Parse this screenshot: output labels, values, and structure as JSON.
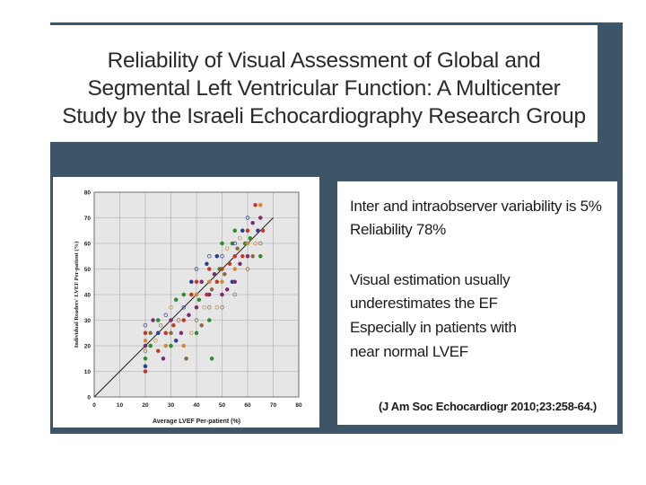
{
  "title": {
    "lines": [
      "Reliability of Visual Assessment of Global and",
      "Segmental Left Ventricular Function: A Multicenter",
      "Study by the Israeli Echocardiography Research Group"
    ]
  },
  "notes": {
    "lines": [
      "Inter and intraobserver variability is 5%",
      "Reliability 78%",
      "Visual estimation usually",
      "underestimates the EF",
      "Especially in patients with",
      "near normal LVEF"
    ],
    "citation": "(J Am Soc Echocardiogr 2010;23:258-64.)"
  },
  "colors": {
    "panel": "#3d5566",
    "series": [
      "#c0392b",
      "#2a3f8f",
      "#2e8b2e",
      "#8a6d3b",
      "#7b2d6e",
      "#d4883a"
    ]
  },
  "chart_data": {
    "type": "scatter",
    "xlabel": "Average LVEF Per-patient (%)",
    "ylabel": "Individual Readers' LVEF Per-patient (%)",
    "xlim": [
      0,
      80
    ],
    "ylim": [
      0,
      80
    ],
    "xticks": [
      0,
      10,
      20,
      30,
      40,
      50,
      60,
      70,
      80
    ],
    "yticks": [
      0,
      10,
      20,
      30,
      40,
      50,
      60,
      70,
      80
    ],
    "grid": true,
    "reference_line": [
      [
        0,
        0
      ],
      [
        70,
        70
      ]
    ],
    "points": [
      [
        20,
        10
      ],
      [
        20,
        12
      ],
      [
        20,
        15
      ],
      [
        20,
        18
      ],
      [
        20,
        20
      ],
      [
        20,
        22
      ],
      [
        20,
        25
      ],
      [
        20,
        28
      ],
      [
        22,
        20
      ],
      [
        22,
        25
      ],
      [
        23,
        30
      ],
      [
        24,
        22
      ],
      [
        25,
        18
      ],
      [
        25,
        25
      ],
      [
        25,
        30
      ],
      [
        26,
        28
      ],
      [
        27,
        15
      ],
      [
        28,
        20
      ],
      [
        28,
        25
      ],
      [
        28,
        32
      ],
      [
        30,
        20
      ],
      [
        30,
        25
      ],
      [
        30,
        30
      ],
      [
        30,
        35
      ],
      [
        31,
        28
      ],
      [
        32,
        22
      ],
      [
        32,
        38
      ],
      [
        33,
        30
      ],
      [
        34,
        25
      ],
      [
        35,
        20
      ],
      [
        35,
        30
      ],
      [
        35,
        35
      ],
      [
        35,
        40
      ],
      [
        36,
        15
      ],
      [
        37,
        32
      ],
      [
        38,
        25
      ],
      [
        38,
        40
      ],
      [
        38,
        45
      ],
      [
        40,
        25
      ],
      [
        40,
        30
      ],
      [
        40,
        35
      ],
      [
        40,
        40
      ],
      [
        40,
        45
      ],
      [
        40,
        50
      ],
      [
        41,
        38
      ],
      [
        42,
        28
      ],
      [
        42,
        45
      ],
      [
        43,
        35
      ],
      [
        44,
        40
      ],
      [
        44,
        52
      ],
      [
        45,
        30
      ],
      [
        45,
        35
      ],
      [
        45,
        40
      ],
      [
        45,
        45
      ],
      [
        45,
        50
      ],
      [
        45,
        55
      ],
      [
        46,
        15
      ],
      [
        46,
        42
      ],
      [
        47,
        48
      ],
      [
        48,
        35
      ],
      [
        48,
        45
      ],
      [
        48,
        55
      ],
      [
        49,
        50
      ],
      [
        50,
        35
      ],
      [
        50,
        40
      ],
      [
        50,
        45
      ],
      [
        50,
        50
      ],
      [
        50,
        55
      ],
      [
        50,
        60
      ],
      [
        51,
        48
      ],
      [
        52,
        42
      ],
      [
        52,
        58
      ],
      [
        53,
        52
      ],
      [
        54,
        45
      ],
      [
        54,
        60
      ],
      [
        55,
        40
      ],
      [
        55,
        45
      ],
      [
        55,
        50
      ],
      [
        55,
        55
      ],
      [
        55,
        60
      ],
      [
        55,
        65
      ],
      [
        56,
        58
      ],
      [
        57,
        52
      ],
      [
        57,
        62
      ],
      [
        58,
        55
      ],
      [
        58,
        65
      ],
      [
        59,
        60
      ],
      [
        60,
        50
      ],
      [
        60,
        55
      ],
      [
        60,
        60
      ],
      [
        60,
        65
      ],
      [
        60,
        70
      ],
      [
        61,
        62
      ],
      [
        62,
        55
      ],
      [
        62,
        68
      ],
      [
        63,
        60
      ],
      [
        63,
        75
      ],
      [
        64,
        65
      ],
      [
        65,
        55
      ],
      [
        65,
        60
      ],
      [
        65,
        70
      ],
      [
        65,
        75
      ],
      [
        66,
        65
      ]
    ]
  }
}
